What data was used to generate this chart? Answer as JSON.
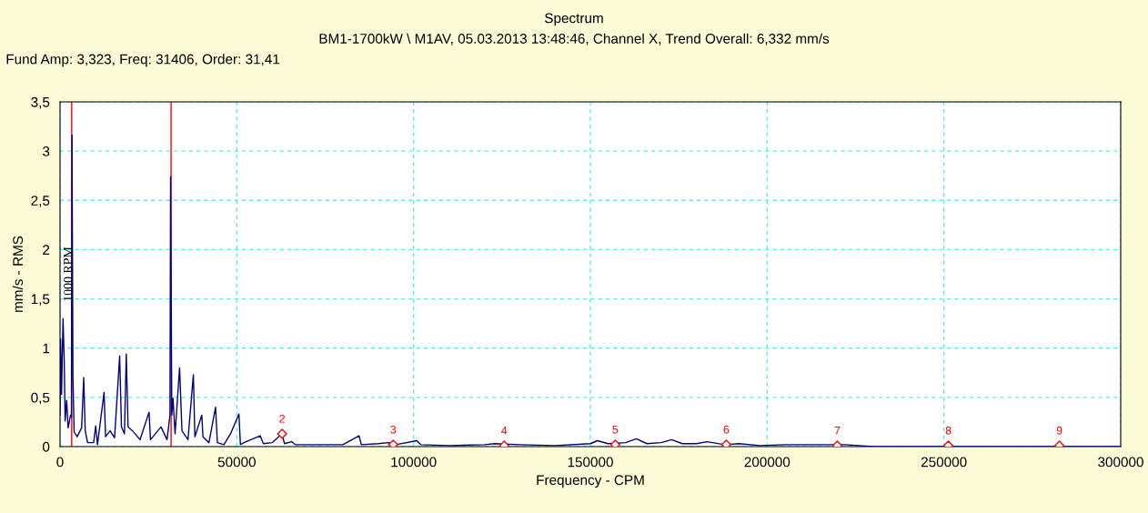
{
  "chart_data": {
    "type": "line",
    "title": "Spectrum",
    "subtitle": "BM1-1700kW \\ M1AV, 05.03.2013 13:48:46, Channel X, Trend Overall: 6,332 mm/s",
    "xlabel": "Frequency - CPM",
    "ylabel": "mm/s - RMS",
    "series": [
      {
        "color": "#000080",
        "x": [
          0,
          170,
          424,
          848,
          1187,
          1441,
          1865,
          2288,
          2966,
          3220,
          3390,
          3644,
          3983,
          4831,
          6102,
          6695,
          7119,
          7797,
          9492,
          10085,
          10594,
          12458,
          12882,
          14153,
          15425,
          16865,
          17374,
          18221,
          18730,
          19238,
          20510,
          22628,
          25170,
          25595,
          28560,
          30260,
          31100,
          31270,
          31610,
          31950,
          32540,
          33815,
          34490,
          36190,
          37710,
          38140,
          40090,
          40430,
          42120,
          43990,
          44500,
          46360,
          48220,
          50600,
          51020,
          52000,
          56610,
          57500,
          60000,
          62720,
          63500,
          65510,
          66500,
          75000,
          80000,
          84580,
          85200,
          90000,
          93000,
          95000,
          100900,
          102000,
          110000,
          120000,
          123000,
          130000,
          140000,
          150000,
          152000,
          155000,
          160000,
          163000,
          166000,
          170000,
          173000,
          176000,
          180000,
          183000,
          188000,
          192000,
          198000,
          205000,
          215000,
          222000,
          230000,
          260000,
          300000
        ],
        "values": [
          0.32,
          1.09,
          0.53,
          1.3,
          0.87,
          0.26,
          0.47,
          0.19,
          0.32,
          0.3,
          3.16,
          0.72,
          0.15,
          0.1,
          0.19,
          0.7,
          0.16,
          0.04,
          0.04,
          0.21,
          0.02,
          0.55,
          0.1,
          0.16,
          0.09,
          0.92,
          0.2,
          0.13,
          0.94,
          0.2,
          0.16,
          0.07,
          0.35,
          0.07,
          0.2,
          0.07,
          0.32,
          2.74,
          0.32,
          0.49,
          0.13,
          0.8,
          0.16,
          0.07,
          0.73,
          0.1,
          0.32,
          0.1,
          0.04,
          0.4,
          0.04,
          0.02,
          0.13,
          0.33,
          0.02,
          0.04,
          0.11,
          0.03,
          0.04,
          0.13,
          0.03,
          0.05,
          0.02,
          0.02,
          0.02,
          0.11,
          0.02,
          0.03,
          0.04,
          0.02,
          0.06,
          0.02,
          0.01,
          0.02,
          0.03,
          0.02,
          0.01,
          0.03,
          0.06,
          0.03,
          0.04,
          0.08,
          0.03,
          0.04,
          0.07,
          0.03,
          0.03,
          0.05,
          0.02,
          0.03,
          0.01,
          0.02,
          0.02,
          0.02,
          0,
          0,
          0
        ]
      }
    ],
    "xlim": [
      0,
      300000
    ],
    "xticks": [
      0,
      50000,
      100000,
      150000,
      200000,
      250000,
      300000
    ],
    "ylim": [
      0,
      3.5
    ],
    "yticks": [
      0,
      {
        "value": 0.5,
        "label": "0,5"
      },
      1,
      {
        "value": 1.5,
        "label": "1,5"
      },
      2,
      {
        "value": 2.5,
        "label": "2,5"
      },
      3,
      {
        "value": 3.5,
        "label": "3,5"
      }
    ],
    "grid": true,
    "ref_lines": [
      {
        "axis": "x",
        "value": 3300,
        "color": "#ff0000"
      },
      {
        "axis": "x",
        "value": 31406,
        "color": "#ff0000"
      }
    ],
    "annotations": [
      "Fund Amp: 3,323, Freq: 31406, Order: 31,41",
      "1000 RPM",
      {
        "text": "2",
        "x": 62812,
        "y": 0.13
      },
      {
        "text": "3",
        "x": 94218,
        "y": 0.02
      },
      {
        "text": "4",
        "x": 125624,
        "y": 0.01
      },
      {
        "text": "5",
        "x": 157030,
        "y": 0.02
      },
      {
        "text": "6",
        "x": 188436,
        "y": 0.02
      },
      {
        "text": "7",
        "x": 219842,
        "y": 0.01
      },
      {
        "text": "8",
        "x": 251248,
        "y": 0.01
      },
      {
        "text": "9",
        "x": 282654,
        "y": 0.01
      }
    ]
  }
}
